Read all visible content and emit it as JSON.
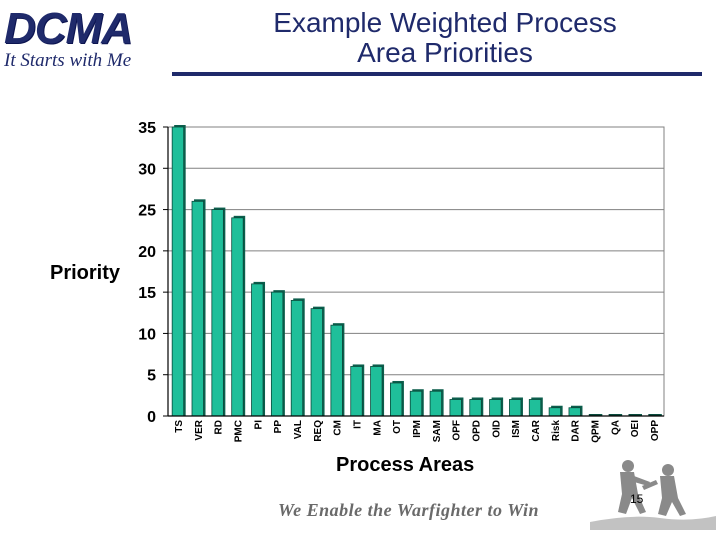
{
  "logo": {
    "main": "DCMA",
    "tagline": "It Starts with Me"
  },
  "title": {
    "line1": "Example Weighted Process",
    "line2": "Area Priorities"
  },
  "footer": {
    "slogan": "We Enable the Warfighter to Win",
    "page_number": "15"
  },
  "chart_data": {
    "type": "bar",
    "xlabel": "Process Areas",
    "ylabel": "Priority",
    "ylim": [
      0,
      35
    ],
    "yticks": [
      0,
      5,
      10,
      15,
      20,
      25,
      30,
      35
    ],
    "grid": true,
    "bar_color": "#1fbf9a",
    "categories": [
      "TS",
      "VER",
      "RD",
      "PMC",
      "PI",
      "PP",
      "VAL",
      "REQ",
      "CM",
      "IT",
      "MA",
      "OT",
      "IPM",
      "SAM",
      "OPF",
      "OPD",
      "OID",
      "ISM",
      "CAR",
      "Risk",
      "DAR",
      "QPM",
      "QA",
      "OEI",
      "OPP"
    ],
    "values": [
      35,
      26,
      25,
      24,
      16,
      15,
      14,
      13,
      11,
      6,
      6,
      4,
      3,
      3,
      2,
      2,
      2,
      2,
      2,
      1,
      1,
      0,
      0,
      0,
      0
    ]
  }
}
